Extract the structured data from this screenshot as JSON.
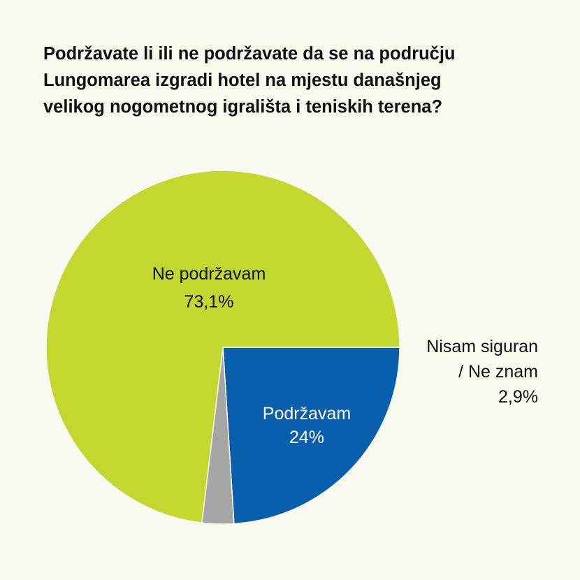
{
  "chart_data": {
    "type": "pie",
    "title": "Podržavate li ili ne podržavate da se na području\nLungomarea izgradi hotel na mjestu današnjeg\nvelikog nogometnog igrališta i teniskih terena?",
    "slices": [
      {
        "label_lines": [
          "Podržavam"
        ],
        "value": 24,
        "value_label": "24%",
        "color": "#0a5fac",
        "text_color": "#ffffff"
      },
      {
        "label_lines": [
          "Nisam siguran",
          "/ Ne znam"
        ],
        "value": 2.9,
        "value_label": "2,9%",
        "color": "#a5a5a5",
        "text_color": "#111111"
      },
      {
        "label_lines": [
          "Ne podržavam"
        ],
        "value": 73.1,
        "value_label": "73,1%",
        "color": "#c2d82f",
        "text_color": "#111111"
      }
    ],
    "start_angle": "3 o'clock",
    "direction": "clockwise",
    "legend": "none"
  }
}
